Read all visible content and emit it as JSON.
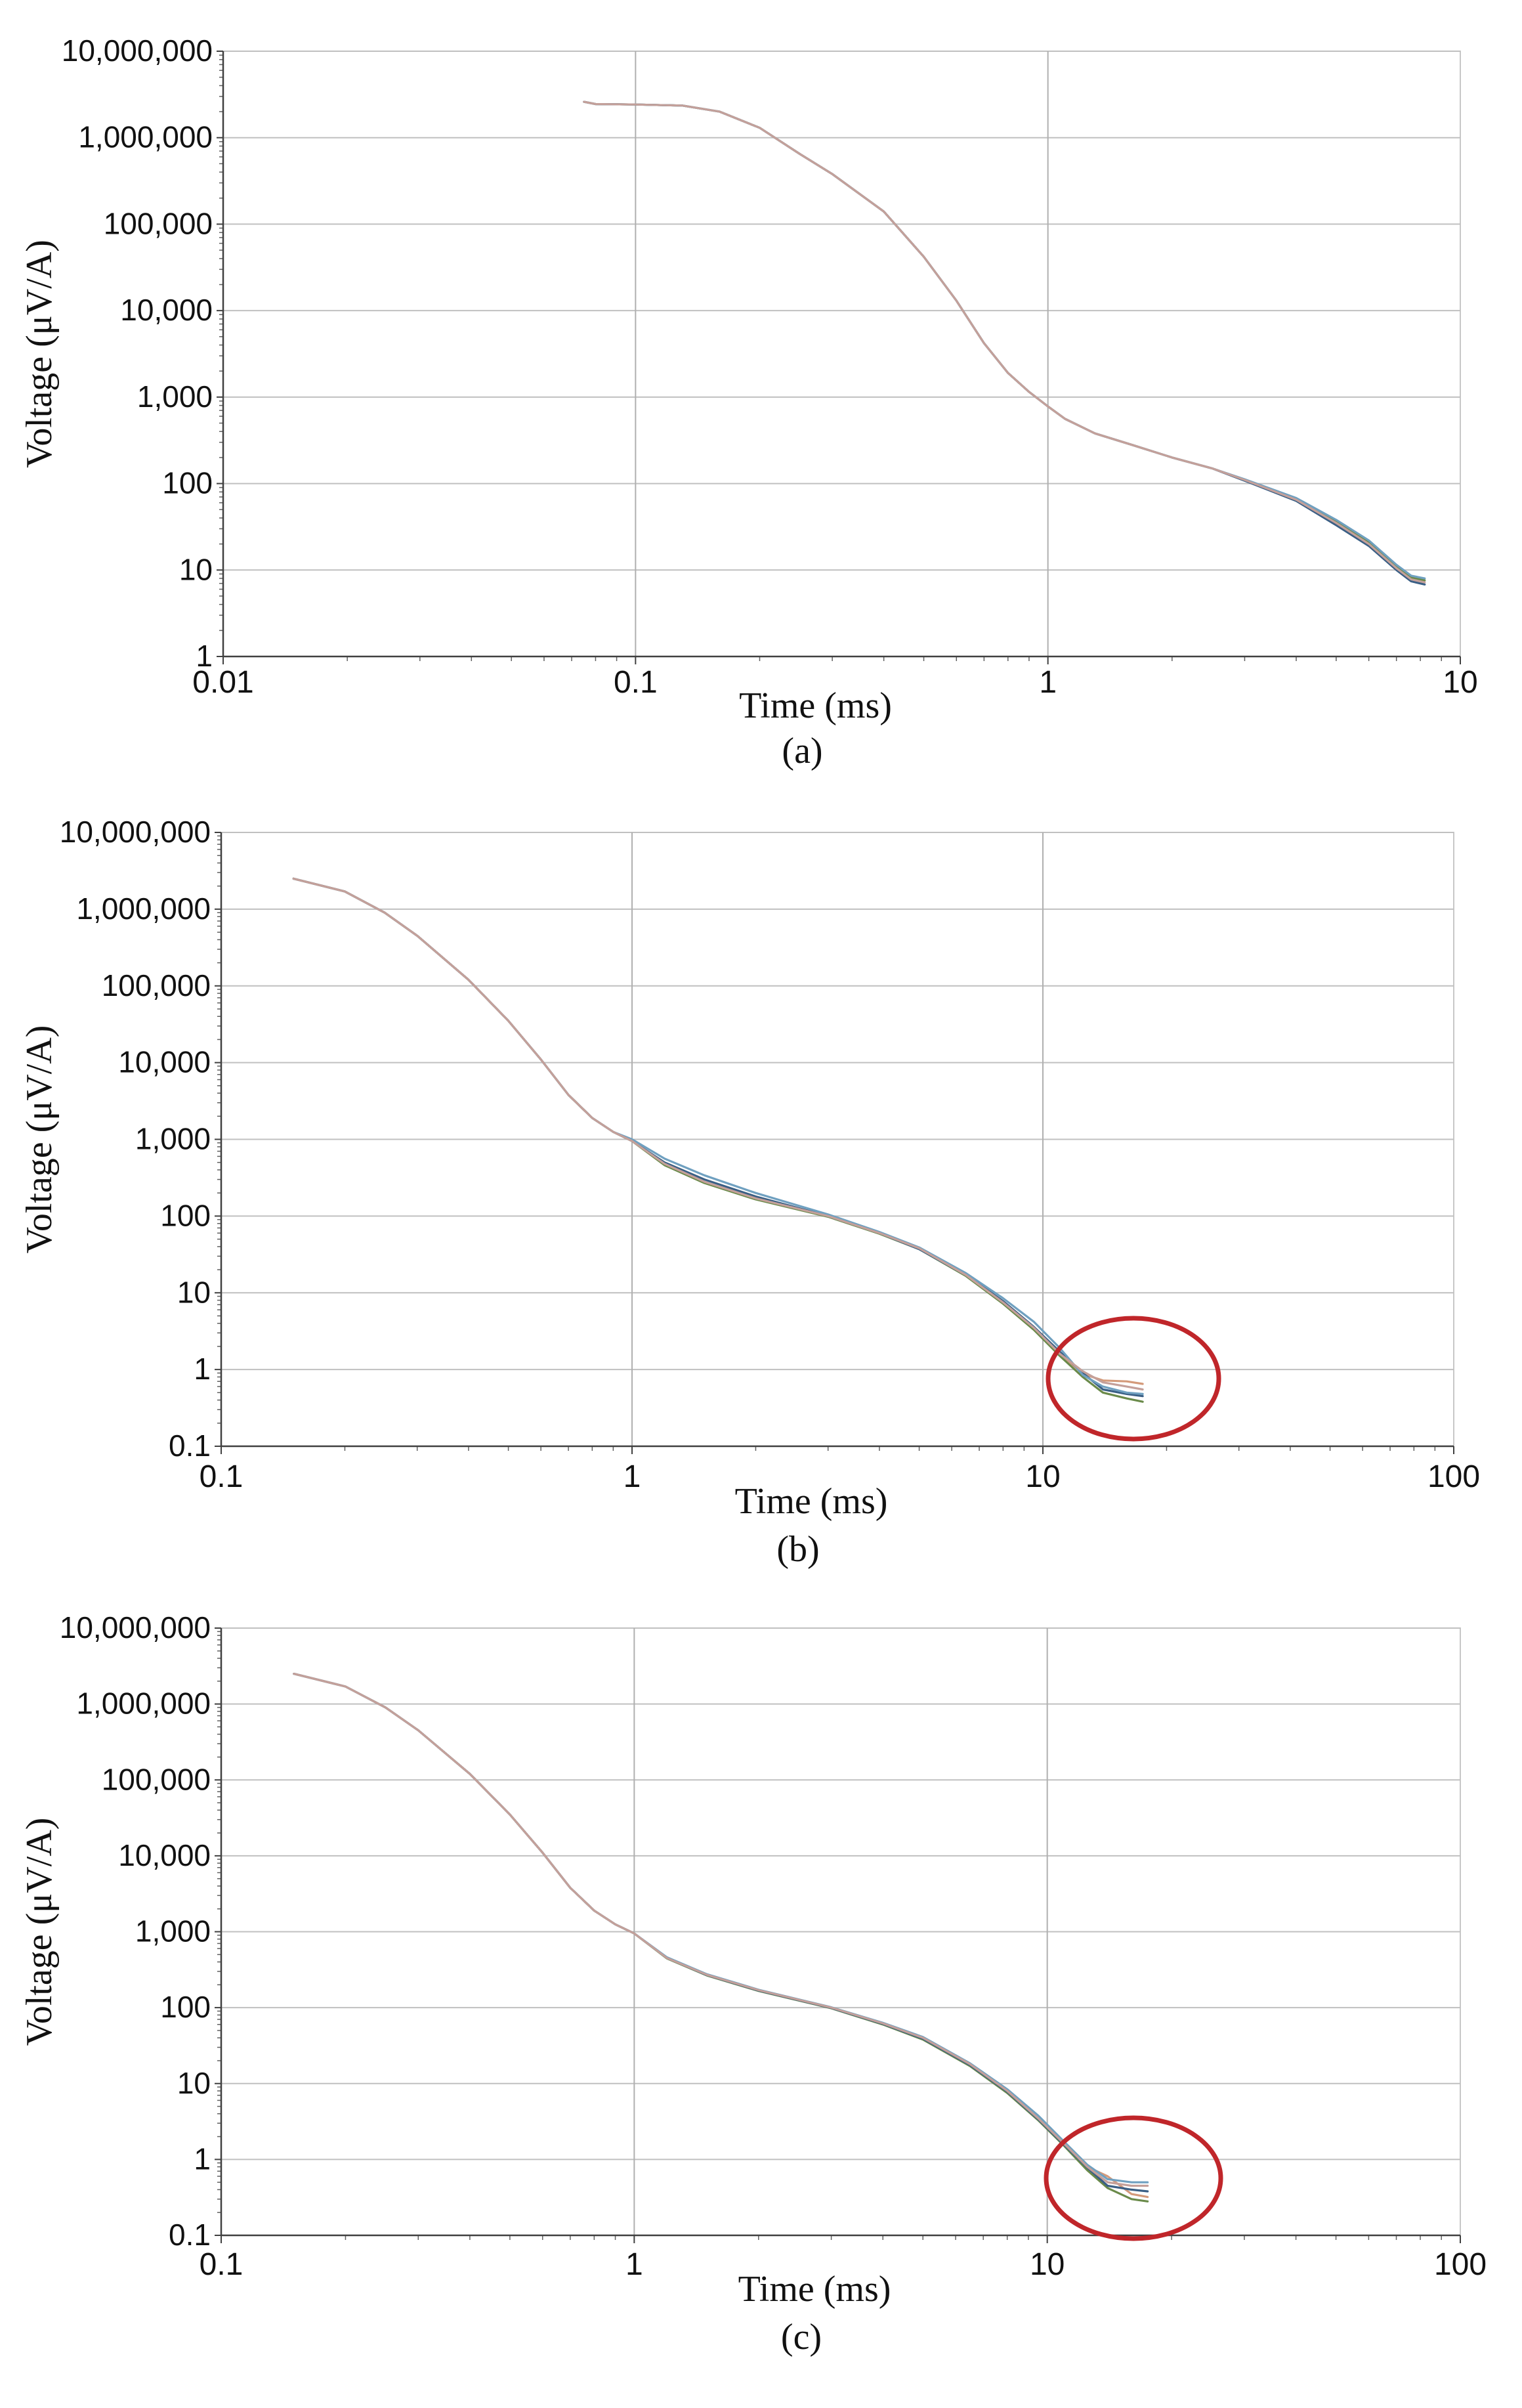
{
  "chart_data": [
    {
      "type": "line",
      "panel_label": "(a)",
      "xlabel": "Time (ms)",
      "ylabel": "Voltage (μV/A)",
      "xscale": "log",
      "yscale": "log",
      "xlim": [
        0.01,
        10
      ],
      "ylim": [
        1,
        10000000
      ],
      "x_ticks": [
        "0.01",
        "0.1",
        "1",
        "10"
      ],
      "y_ticks": [
        "1",
        "10",
        "100",
        "1,000",
        "10,000",
        "100,000",
        "1,000,000",
        "10,000,000"
      ],
      "grid": "major",
      "legend": "none",
      "colors": [
        "#c4a09a",
        "#6fa0c0",
        "#3a5f85",
        "#6a8a4a",
        "#d49a7a",
        "#b5a18e"
      ],
      "series": [
        {
          "x": [
            0.075,
            0.08,
            0.1,
            0.13,
            0.16,
            0.2,
            0.25,
            0.3,
            0.4,
            0.5,
            0.6,
            0.7,
            0.8,
            0.9,
            1.0,
            1.1,
            1.3,
            1.6,
            2.0,
            2.5,
            3.0,
            4.0,
            5.0,
            6.0,
            7.0,
            7.6,
            8.2
          ],
          "y": [
            2600000,
            2450000,
            2420000,
            2350000,
            2000000,
            1300000,
            650000,
            380000,
            140000,
            42000,
            13000,
            4200,
            1900,
            1150,
            780,
            560,
            380,
            280,
            200,
            150,
            110,
            65,
            35,
            20,
            10.5,
            7.8,
            7.2
          ]
        },
        {
          "x": [
            0.075,
            0.08,
            0.1,
            0.13,
            0.16,
            0.2,
            0.25,
            0.3,
            0.4,
            0.5,
            0.6,
            0.7,
            0.8,
            0.9,
            1.0,
            1.1,
            1.3,
            1.6,
            2.0,
            2.5,
            3.0,
            4.0,
            5.0,
            6.0,
            7.0,
            7.6,
            8.2
          ],
          "y": [
            2600000,
            2450000,
            2420000,
            2350000,
            2000000,
            1300000,
            650000,
            380000,
            140000,
            42000,
            13000,
            4200,
            1900,
            1150,
            780,
            560,
            380,
            280,
            200,
            150,
            112,
            68,
            38,
            22,
            11.5,
            8.6,
            8.0
          ]
        },
        {
          "x": [
            0.075,
            0.08,
            0.1,
            0.13,
            0.16,
            0.2,
            0.25,
            0.3,
            0.4,
            0.5,
            0.6,
            0.7,
            0.8,
            0.9,
            1.0,
            1.1,
            1.3,
            1.6,
            2.0,
            2.5,
            3.0,
            4.0,
            5.0,
            6.0,
            7.0,
            7.6,
            8.2
          ],
          "y": [
            2600000,
            2450000,
            2420000,
            2350000,
            2000000,
            1300000,
            650000,
            380000,
            140000,
            42000,
            13000,
            4200,
            1900,
            1150,
            780,
            560,
            380,
            280,
            200,
            150,
            108,
            63,
            33,
            19,
            10.0,
            7.4,
            6.8
          ]
        },
        {
          "x": [
            0.075,
            0.08,
            0.1,
            0.13,
            0.16,
            0.2,
            0.25,
            0.3,
            0.4,
            0.5,
            0.6,
            0.7,
            0.8,
            0.9,
            1.0,
            1.1,
            1.3,
            1.6,
            2.0,
            2.5,
            3.0,
            4.0,
            5.0,
            6.0,
            7.0,
            7.6,
            8.2
          ],
          "y": [
            2600000,
            2450000,
            2420000,
            2350000,
            2000000,
            1300000,
            650000,
            380000,
            140000,
            42000,
            13000,
            4200,
            1900,
            1150,
            780,
            560,
            380,
            280,
            200,
            150,
            110,
            66,
            36,
            21,
            11.0,
            8.2,
            7.6
          ]
        }
      ]
    },
    {
      "type": "line",
      "panel_label": "(b)",
      "xlabel": "Time (ms)",
      "ylabel": "Voltage (μV/A)",
      "xscale": "log",
      "yscale": "log",
      "xlim": [
        0.1,
        100
      ],
      "ylim": [
        0.1,
        10000000
      ],
      "x_ticks": [
        "0.1",
        "1",
        "10",
        "100"
      ],
      "y_ticks": [
        "0.1",
        "1",
        "10",
        "100",
        "1,000",
        "10,000",
        "100,000",
        "1,000,000",
        "10,000,000"
      ],
      "grid": "major",
      "legend": "none",
      "annotation": "red circle around late-time data near 15 ms",
      "annotation_color": "#c0262a",
      "colors": [
        "#c4a09a",
        "#6fa0c0",
        "#3a5f85",
        "#6a8a4a",
        "#d49a7a",
        "#b5a18e"
      ],
      "series": [
        {
          "x": [
            0.15,
            0.2,
            0.25,
            0.3,
            0.4,
            0.5,
            0.6,
            0.7,
            0.8,
            0.9,
            1.0,
            1.2,
            1.5,
            2.0,
            3.0,
            4.0,
            5.0,
            6.5,
            8.0,
            9.5,
            11.0,
            12.5,
            14.0,
            16.0,
            17.5
          ],
          "y": [
            2500000,
            1700000,
            900000,
            450000,
            120000,
            35000,
            11000,
            3800,
            1900,
            1250,
            950,
            480,
            280,
            170,
            100,
            60,
            38,
            17,
            7.5,
            3.5,
            1.6,
            0.95,
            0.68,
            0.6,
            0.55
          ]
        },
        {
          "x": [
            0.15,
            0.2,
            0.25,
            0.3,
            0.4,
            0.5,
            0.6,
            0.7,
            0.8,
            0.9,
            1.0,
            1.2,
            1.5,
            2.0,
            3.0,
            4.0,
            5.0,
            6.5,
            8.0,
            9.5,
            11.0,
            12.5,
            14.0,
            16.0,
            17.5
          ],
          "y": [
            2500000,
            1700000,
            900000,
            450000,
            120000,
            35000,
            11000,
            3800,
            1900,
            1250,
            1000,
            560,
            340,
            200,
            105,
            62,
            39,
            18,
            8.5,
            4.2,
            1.9,
            0.85,
            0.6,
            0.5,
            0.48
          ]
        },
        {
          "x": [
            0.15,
            0.2,
            0.25,
            0.3,
            0.4,
            0.5,
            0.6,
            0.7,
            0.8,
            0.9,
            1.0,
            1.2,
            1.5,
            2.0,
            3.0,
            4.0,
            5.0,
            6.5,
            8.0,
            9.5,
            11.0,
            12.5,
            14.0,
            16.0,
            17.5
          ],
          "y": [
            2500000,
            1700000,
            900000,
            450000,
            120000,
            35000,
            11000,
            3800,
            1900,
            1250,
            950,
            500,
            300,
            180,
            100,
            60,
            37,
            17,
            7.8,
            3.6,
            1.7,
            0.9,
            0.55,
            0.48,
            0.45
          ]
        },
        {
          "x": [
            0.15,
            0.2,
            0.25,
            0.3,
            0.4,
            0.5,
            0.6,
            0.7,
            0.8,
            0.9,
            1.0,
            1.2,
            1.5,
            2.0,
            3.0,
            4.0,
            5.0,
            6.5,
            8.0,
            9.5,
            11.0,
            12.5,
            14.0,
            16.0,
            17.5
          ],
          "y": [
            2500000,
            1700000,
            900000,
            450000,
            120000,
            35000,
            11000,
            3800,
            1900,
            1250,
            950,
            460,
            270,
            165,
            98,
            59,
            37,
            16.5,
            7.2,
            3.3,
            1.5,
            0.8,
            0.5,
            0.42,
            0.38
          ]
        },
        {
          "x": [
            0.15,
            0.2,
            0.25,
            0.3,
            0.4,
            0.5,
            0.6,
            0.7,
            0.8,
            0.9,
            1.0,
            1.2,
            1.5,
            2.0,
            3.0,
            4.0,
            5.0,
            6.5,
            8.0,
            9.5,
            11.0,
            12.5,
            14.0,
            16.0,
            17.5
          ],
          "y": [
            2500000,
            1700000,
            900000,
            450000,
            120000,
            35000,
            11000,
            3800,
            1900,
            1250,
            950,
            470,
            275,
            168,
            99,
            60,
            38,
            17,
            7.6,
            3.4,
            1.6,
            0.88,
            0.72,
            0.7,
            0.65
          ]
        }
      ]
    },
    {
      "type": "line",
      "panel_label": "(c)",
      "xlabel": "Time (ms)",
      "ylabel": "Voltage (μV/A)",
      "xscale": "log",
      "yscale": "log",
      "xlim": [
        0.1,
        100
      ],
      "ylim": [
        0.1,
        10000000
      ],
      "x_ticks": [
        "0.1",
        "1",
        "10",
        "100"
      ],
      "y_ticks": [
        "0.1",
        "1",
        "10",
        "100",
        "1,000",
        "10,000",
        "100,000",
        "1,000,000",
        "10,000,000"
      ],
      "grid": "major",
      "legend": "none",
      "annotation": "red circle around late-time data near 15 ms",
      "annotation_color": "#c0262a",
      "colors": [
        "#c4a09a",
        "#6fa0c0",
        "#3a5f85",
        "#6a8a4a",
        "#d49a7a",
        "#b5a18e"
      ],
      "series": [
        {
          "x": [
            0.15,
            0.2,
            0.25,
            0.3,
            0.4,
            0.5,
            0.6,
            0.7,
            0.8,
            0.9,
            1.0,
            1.2,
            1.5,
            2.0,
            3.0,
            4.0,
            5.0,
            6.5,
            8.0,
            9.5,
            11.0,
            12.5,
            14.0,
            16.0,
            17.5
          ],
          "y": [
            2500000,
            1700000,
            900000,
            450000,
            120000,
            35000,
            11000,
            3800,
            1900,
            1250,
            950,
            450,
            270,
            170,
            100,
            62,
            40,
            18,
            8.0,
            3.5,
            1.6,
            0.8,
            0.5,
            0.45,
            0.45
          ]
        },
        {
          "x": [
            0.15,
            0.2,
            0.25,
            0.3,
            0.4,
            0.5,
            0.6,
            0.7,
            0.8,
            0.9,
            1.0,
            1.2,
            1.5,
            2.0,
            3.0,
            4.0,
            5.0,
            6.5,
            8.0,
            9.5,
            11.0,
            12.5,
            14.0,
            16.0,
            17.5
          ],
          "y": [
            2500000,
            1700000,
            900000,
            450000,
            120000,
            35000,
            11000,
            3800,
            1900,
            1250,
            950,
            460,
            275,
            172,
            101,
            63,
            41,
            18.5,
            8.4,
            3.8,
            1.7,
            0.85,
            0.55,
            0.5,
            0.5
          ]
        },
        {
          "x": [
            0.15,
            0.2,
            0.25,
            0.3,
            0.4,
            0.5,
            0.6,
            0.7,
            0.8,
            0.9,
            1.0,
            1.2,
            1.5,
            2.0,
            3.0,
            4.0,
            5.0,
            6.5,
            8.0,
            9.5,
            11.0,
            12.5,
            14.0,
            16.0,
            17.5
          ],
          "y": [
            2500000,
            1700000,
            900000,
            450000,
            120000,
            35000,
            11000,
            3800,
            1900,
            1250,
            950,
            450,
            268,
            168,
            99,
            61,
            39,
            17.5,
            7.8,
            3.4,
            1.55,
            0.78,
            0.45,
            0.4,
            0.38
          ]
        },
        {
          "x": [
            0.15,
            0.2,
            0.25,
            0.3,
            0.4,
            0.5,
            0.6,
            0.7,
            0.8,
            0.9,
            1.0,
            1.2,
            1.5,
            2.0,
            3.0,
            4.0,
            5.0,
            6.5,
            8.0,
            9.5,
            11.0,
            12.5,
            14.0,
            16.0,
            17.5
          ],
          "y": [
            2500000,
            1700000,
            900000,
            450000,
            120000,
            35000,
            11000,
            3800,
            1900,
            1250,
            950,
            445,
            265,
            166,
            98,
            60,
            38,
            17,
            7.5,
            3.3,
            1.5,
            0.72,
            0.42,
            0.3,
            0.28
          ]
        },
        {
          "x": [
            0.15,
            0.2,
            0.25,
            0.3,
            0.4,
            0.5,
            0.6,
            0.7,
            0.8,
            0.9,
            1.0,
            1.2,
            1.5,
            2.0,
            3.0,
            4.0,
            5.0,
            6.5,
            8.0,
            9.5,
            11.0,
            12.5,
            14.0,
            16.0,
            17.5
          ],
          "y": [
            2500000,
            1700000,
            900000,
            450000,
            120000,
            35000,
            11000,
            3800,
            1900,
            1250,
            950,
            452,
            270,
            169,
            100,
            62,
            40,
            18,
            8.0,
            3.5,
            1.6,
            0.8,
            0.6,
            0.35,
            0.32
          ]
        }
      ]
    }
  ]
}
